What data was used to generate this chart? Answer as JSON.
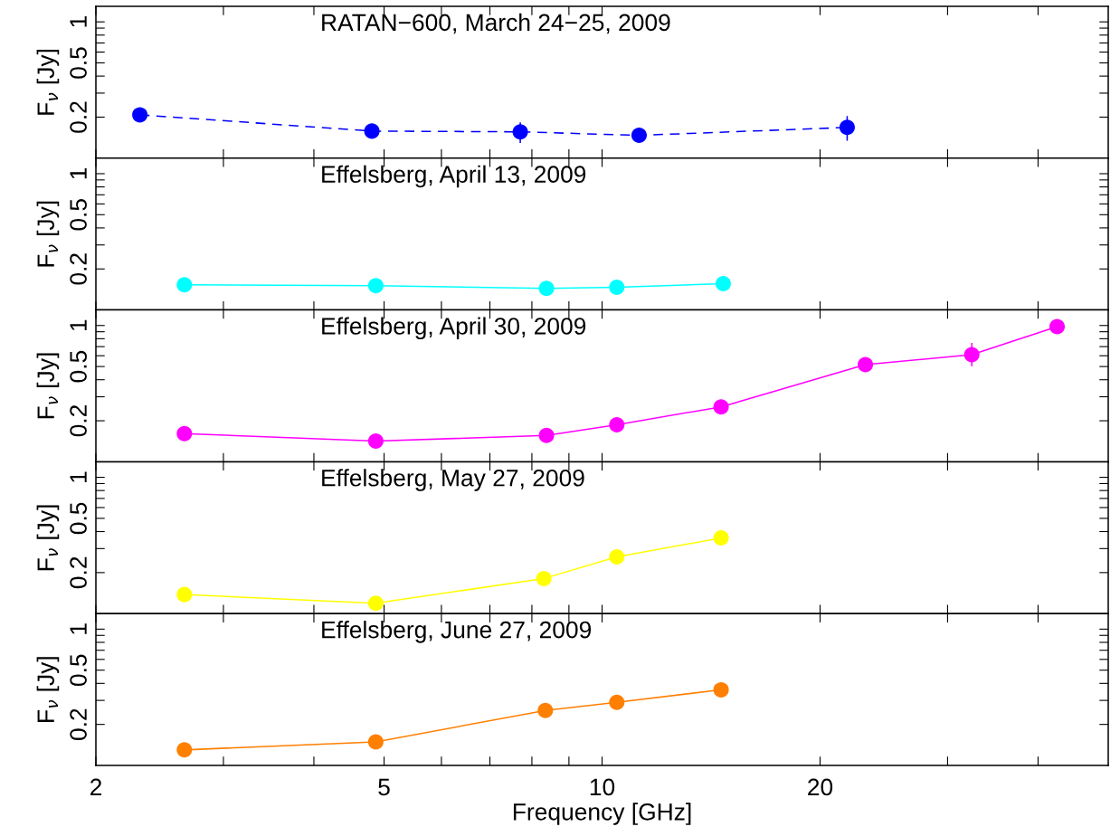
{
  "chart_data": [
    {
      "type": "line",
      "title": "RATAN−600, March 24−25, 2009",
      "ylabel": "F$_{ν}$ [Jy]",
      "log": "xy",
      "marker": "circle",
      "line_style": "dashed",
      "tick_labels": "y",
      "grid": false,
      "xlim": [
        2,
        50
      ],
      "xticks": [
        2,
        {
          "value": 3,
          "label": null
        },
        {
          "value": 4,
          "label": null
        },
        5,
        {
          "value": 6,
          "label": null
        },
        {
          "value": 7,
          "label": null
        },
        {
          "value": 8,
          "label": null
        },
        {
          "value": 9,
          "label": null
        },
        10,
        20,
        {
          "value": 30,
          "label": null
        },
        {
          "value": 40,
          "label": null
        }
      ],
      "ylim": [
        0.1,
        1.3
      ],
      "yticks": [
        0.2,
        {
          "value": 0.3,
          "label": null
        },
        {
          "value": 0.4,
          "label": null
        },
        0.5,
        {
          "value": 0.6,
          "label": null
        },
        {
          "value": 0.7,
          "label": null
        },
        {
          "value": 0.8,
          "label": null
        },
        {
          "value": 0.9,
          "label": null
        },
        1
      ],
      "x": [
        2.3,
        4.81,
        7.71,
        11.25,
        21.8
      ],
      "series": [
        {
          "color": "#0000ff",
          "values": [
            0.208,
            0.158,
            0.156,
            0.147,
            0.168
          ],
          "errors": [
            null,
            null,
            [
              0.131,
              0.181
            ],
            null,
            [
              0.136,
              0.201
            ]
          ]
        }
      ]
    },
    {
      "type": "line",
      "title": "Effelsberg, April 13, 2009",
      "ylabel": "F$_{ν}$ [Jy]",
      "log": "xy",
      "marker": "circle",
      "line_style": "solid",
      "tick_labels": "y",
      "grid": false,
      "xlim": [
        2,
        50
      ],
      "xticks": [
        2,
        {
          "value": 3,
          "label": null
        },
        {
          "value": 4,
          "label": null
        },
        5,
        {
          "value": 6,
          "label": null
        },
        {
          "value": 7,
          "label": null
        },
        {
          "value": 8,
          "label": null
        },
        {
          "value": 9,
          "label": null
        },
        10,
        20,
        {
          "value": 30,
          "label": null
        },
        {
          "value": 40,
          "label": null
        }
      ],
      "ylim": [
        0.1,
        1.3
      ],
      "yticks": [
        0.2,
        {
          "value": 0.3,
          "label": null
        },
        {
          "value": 0.4,
          "label": null
        },
        0.5,
        {
          "value": 0.6,
          "label": null
        },
        {
          "value": 0.7,
          "label": null
        },
        {
          "value": 0.8,
          "label": null
        },
        {
          "value": 0.9,
          "label": null
        },
        1
      ],
      "x": [
        2.65,
        4.87,
        8.38,
        10.48,
        14.7
      ],
      "series": [
        {
          "color": "#00ffff",
          "values": [
            0.153,
            0.151,
            0.144,
            0.147,
            0.156
          ]
        }
      ]
    },
    {
      "type": "line",
      "title": "Effelsberg, April 30, 2009",
      "ylabel": "F$_{ν}$ [Jy]",
      "log": "xy",
      "marker": "circle",
      "line_style": "solid",
      "tick_labels": "y",
      "grid": false,
      "xlim": [
        2,
        50
      ],
      "xticks": [
        2,
        {
          "value": 3,
          "label": null
        },
        {
          "value": 4,
          "label": null
        },
        5,
        {
          "value": 6,
          "label": null
        },
        {
          "value": 7,
          "label": null
        },
        {
          "value": 8,
          "label": null
        },
        {
          "value": 9,
          "label": null
        },
        10,
        20,
        {
          "value": 30,
          "label": null
        },
        {
          "value": 40,
          "label": null
        }
      ],
      "ylim": [
        0.1,
        1.3
      ],
      "yticks": [
        0.2,
        {
          "value": 0.3,
          "label": null
        },
        {
          "value": 0.4,
          "label": null
        },
        0.5,
        {
          "value": 0.6,
          "label": null
        },
        {
          "value": 0.7,
          "label": null
        },
        {
          "value": 0.8,
          "label": null
        },
        {
          "value": 0.9,
          "label": null
        },
        1
      ],
      "x": [
        2.65,
        4.87,
        8.38,
        10.48,
        14.6,
        23.1,
        32.4,
        42.5
      ],
      "series": [
        {
          "color": "#ff00ff",
          "values": [
            0.161,
            0.142,
            0.156,
            0.187,
            0.253,
            0.517,
            0.611,
            0.98
          ],
          "errors": [
            null,
            null,
            null,
            null,
            null,
            null,
            [
              0.508,
              0.736
            ],
            null
          ]
        }
      ]
    },
    {
      "type": "line",
      "title": "Effelsberg, May 27, 2009",
      "ylabel": "F$_{ν}$ [Jy]",
      "log": "xy",
      "marker": "circle",
      "line_style": "solid",
      "tick_labels": "y",
      "grid": false,
      "xlim": [
        2,
        50
      ],
      "xticks": [
        2,
        {
          "value": 3,
          "label": null
        },
        {
          "value": 4,
          "label": null
        },
        5,
        {
          "value": 6,
          "label": null
        },
        {
          "value": 7,
          "label": null
        },
        {
          "value": 8,
          "label": null
        },
        {
          "value": 9,
          "label": null
        },
        10,
        20,
        {
          "value": 30,
          "label": null
        },
        {
          "value": 40,
          "label": null
        }
      ],
      "ylim": [
        0.1,
        1.3
      ],
      "yticks": [
        0.2,
        {
          "value": 0.3,
          "label": null
        },
        {
          "value": 0.4,
          "label": null
        },
        0.5,
        {
          "value": 0.6,
          "label": null
        },
        {
          "value": 0.7,
          "label": null
        },
        {
          "value": 0.8,
          "label": null
        },
        {
          "value": 0.9,
          "label": null
        },
        1
      ],
      "x": [
        2.65,
        4.87,
        8.31,
        10.48,
        14.6
      ],
      "series": [
        {
          "color": "#ffff00",
          "values": [
            0.138,
            0.119,
            0.181,
            0.261,
            0.359
          ]
        }
      ]
    },
    {
      "type": "line",
      "title": "Effelsberg, June 27, 2009",
      "ylabel": "F$_{ν}$ [Jy]",
      "xlabel": "Frequency [GHz]",
      "log": "xy",
      "marker": "circle",
      "line_style": "solid",
      "grid": false,
      "xlim": [
        2,
        50
      ],
      "xticks": [
        2,
        {
          "value": 3,
          "label": null
        },
        {
          "value": 4,
          "label": null
        },
        5,
        {
          "value": 6,
          "label": null
        },
        {
          "value": 7,
          "label": null
        },
        {
          "value": 8,
          "label": null
        },
        {
          "value": 9,
          "label": null
        },
        10,
        20,
        {
          "value": 30,
          "label": null
        },
        {
          "value": 40,
          "label": null
        }
      ],
      "ylim": [
        0.1,
        1.3
      ],
      "yticks": [
        0.2,
        {
          "value": 0.3,
          "label": null
        },
        {
          "value": 0.4,
          "label": null
        },
        0.5,
        {
          "value": 0.6,
          "label": null
        },
        {
          "value": 0.7,
          "label": null
        },
        {
          "value": 0.8,
          "label": null
        },
        {
          "value": 0.9,
          "label": null
        },
        1
      ],
      "x": [
        2.65,
        4.87,
        8.35,
        10.48,
        14.6
      ],
      "series": [
        {
          "color": "#ff7f00",
          "values": [
            0.13,
            0.149,
            0.253,
            0.29,
            0.359
          ]
        }
      ]
    }
  ]
}
